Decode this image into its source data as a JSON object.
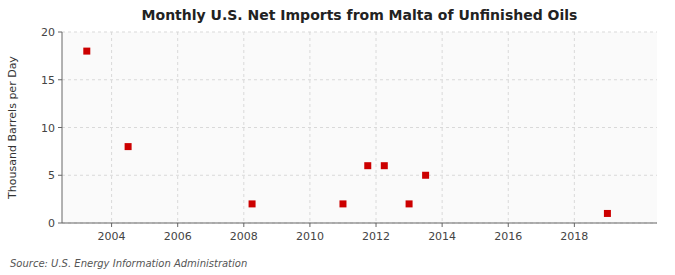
{
  "chart_data": {
    "type": "scatter",
    "title": "Monthly U.S. Net Imports from Malta of Unfinished Oils",
    "ylabel": "Thousand Barrels per Day",
    "source": "Source: U.S. Energy Information Administration",
    "x": [
      2003.25,
      2004.5,
      2008.25,
      2011.0,
      2011.75,
      2012.25,
      2013.0,
      2013.5,
      2019.0
    ],
    "values": [
      18,
      8,
      2,
      2,
      6,
      6,
      2,
      5,
      1
    ],
    "color": "#cc0000",
    "marker": "square",
    "xlim": [
      2002.5,
      2020.5
    ],
    "ylim": [
      0,
      20
    ],
    "xticks": [
      2004,
      2006,
      2008,
      2010,
      2012,
      2014,
      2016,
      2018
    ],
    "yticks": [
      0,
      5,
      10,
      15,
      20
    ],
    "grid": true
  }
}
